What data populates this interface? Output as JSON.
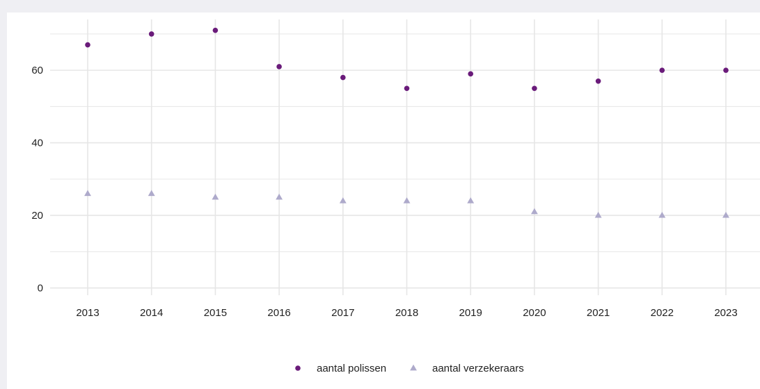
{
  "chart_data": {
    "type": "scatter",
    "title": "",
    "xlabel": "",
    "ylabel": "",
    "x": [
      "2013",
      "2014",
      "2015",
      "2016",
      "2017",
      "2018",
      "2019",
      "2020",
      "2021",
      "2022",
      "2023"
    ],
    "ylim": [
      -2,
      74
    ],
    "yticks": [
      0,
      20,
      40,
      60
    ],
    "grid": true,
    "legend_position": "bottom",
    "series": [
      {
        "name": "aantal polissen",
        "marker": "circle",
        "color": "#6a1b7a",
        "values": [
          67,
          70,
          71,
          61,
          58,
          55,
          59,
          55,
          57,
          60,
          60
        ]
      },
      {
        "name": "aantal verzekeraars",
        "marker": "triangle",
        "color": "#aeaacb",
        "values": [
          26,
          26,
          25,
          25,
          24,
          24,
          24,
          21,
          20,
          20,
          20
        ]
      }
    ]
  },
  "colors": {
    "background": "#efeff3",
    "panel": "#ffffff",
    "grid": "#e6e6e6"
  }
}
